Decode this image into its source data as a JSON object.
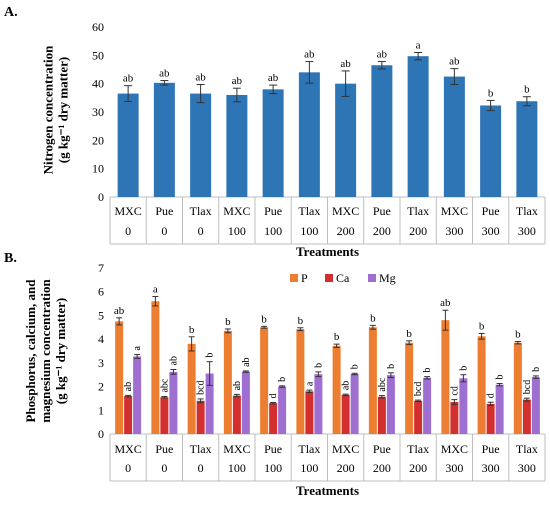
{
  "chart_data": [
    {
      "panel_label": "A.",
      "type": "bar",
      "ylabel_line1": "Nitrogen concentration",
      "ylabel_line2": "(g kg⁻¹ dry matter)",
      "xlabel": "Treatments",
      "ylim": [
        0,
        60
      ],
      "yticks": [
        0,
        10,
        20,
        30,
        40,
        50,
        60
      ],
      "grid": false,
      "categories": [
        {
          "origin": "MXC",
          "dose": "0"
        },
        {
          "origin": "Pue",
          "dose": "0"
        },
        {
          "origin": "Tlax",
          "dose": "0"
        },
        {
          "origin": "MXC",
          "dose": "100"
        },
        {
          "origin": "Pue",
          "dose": "100"
        },
        {
          "origin": "Tlax",
          "dose": "100"
        },
        {
          "origin": "MXC",
          "dose": "200"
        },
        {
          "origin": "Pue",
          "dose": "200"
        },
        {
          "origin": "Tlax",
          "dose": "200"
        },
        {
          "origin": "MXC",
          "dose": "300"
        },
        {
          "origin": "Pue",
          "dose": "300"
        },
        {
          "origin": "Tlax",
          "dose": "300"
        }
      ],
      "series": [
        {
          "name": "",
          "color": "#2e75b6",
          "values": [
            36.5,
            40.3,
            36.5,
            36.0,
            38.0,
            44.0,
            40.0,
            46.5,
            49.7,
            42.5,
            32.3,
            33.8
          ],
          "errors": [
            2.8,
            0.8,
            3.2,
            2.4,
            1.5,
            3.8,
            4.5,
            1.3,
            1.3,
            2.8,
            1.8,
            1.6
          ],
          "letters": [
            "ab",
            "ab",
            "ab",
            "ab",
            "ab",
            "ab",
            "ab",
            "ab",
            "a",
            "ab",
            "b",
            "b"
          ]
        }
      ]
    },
    {
      "panel_label": "B.",
      "type": "bar",
      "ylabel_line1": "Phosphorus, calcium, and",
      "ylabel_line2": "magnesium concentration",
      "ylabel_line3": "(g kg⁻¹ dry matter)",
      "xlabel": "Treatments",
      "ylim": [
        0,
        7
      ],
      "yticks": [
        0,
        1,
        2,
        3,
        4,
        5,
        6,
        7
      ],
      "grid": false,
      "legend_position": "top-center",
      "categories": [
        {
          "origin": "MXC",
          "dose": "0"
        },
        {
          "origin": "Pue",
          "dose": "0"
        },
        {
          "origin": "Tlax",
          "dose": "0"
        },
        {
          "origin": "MXC",
          "dose": "100"
        },
        {
          "origin": "Pue",
          "dose": "100"
        },
        {
          "origin": "Tlax",
          "dose": "100"
        },
        {
          "origin": "MXC",
          "dose": "200"
        },
        {
          "origin": "Pue",
          "dose": "200"
        },
        {
          "origin": "Tlax",
          "dose": "200"
        },
        {
          "origin": "MXC",
          "dose": "300"
        },
        {
          "origin": "Pue",
          "dose": "300"
        },
        {
          "origin": "Tlax",
          "dose": "300"
        }
      ],
      "series": [
        {
          "name": "P",
          "color": "#ed7d31",
          "values": [
            4.75,
            5.6,
            3.8,
            4.35,
            4.5,
            4.42,
            3.72,
            4.5,
            3.85,
            4.8,
            4.12,
            3.85
          ],
          "errors": [
            0.15,
            0.2,
            0.3,
            0.08,
            0.04,
            0.06,
            0.07,
            0.08,
            0.08,
            0.42,
            0.12,
            0.05
          ],
          "letters": [
            "ab",
            "a",
            "b",
            "b",
            "b",
            "b",
            "b",
            "b",
            "b",
            "ab",
            "b",
            "b"
          ]
        },
        {
          "name": "Ca",
          "color": "#d32f2f",
          "values": [
            1.6,
            1.55,
            1.4,
            1.62,
            1.3,
            1.8,
            1.65,
            1.57,
            1.4,
            1.35,
            1.27,
            1.45
          ],
          "errors": [
            0.03,
            0.03,
            0.08,
            0.05,
            0.03,
            0.05,
            0.03,
            0.05,
            0.03,
            0.1,
            0.07,
            0.06
          ],
          "letters": [
            "ab",
            "abc",
            "bcd",
            "ab",
            "d",
            "a",
            "ab",
            "abc",
            "bcd",
            "cd",
            "d",
            "bcd"
          ]
        },
        {
          "name": "Mg",
          "color": "#9e6fd1",
          "values": [
            3.27,
            2.62,
            2.55,
            2.63,
            2.0,
            2.52,
            2.53,
            2.48,
            2.37,
            2.35,
            2.08,
            2.4
          ],
          "errors": [
            0.08,
            0.1,
            0.5,
            0.03,
            0.03,
            0.1,
            0.03,
            0.1,
            0.05,
            0.15,
            0.05,
            0.05
          ],
          "letters": [
            "a",
            "ab",
            "b",
            "ab",
            "b",
            "b",
            "b",
            "b",
            "b",
            "b",
            "b",
            "b"
          ]
        }
      ]
    }
  ]
}
